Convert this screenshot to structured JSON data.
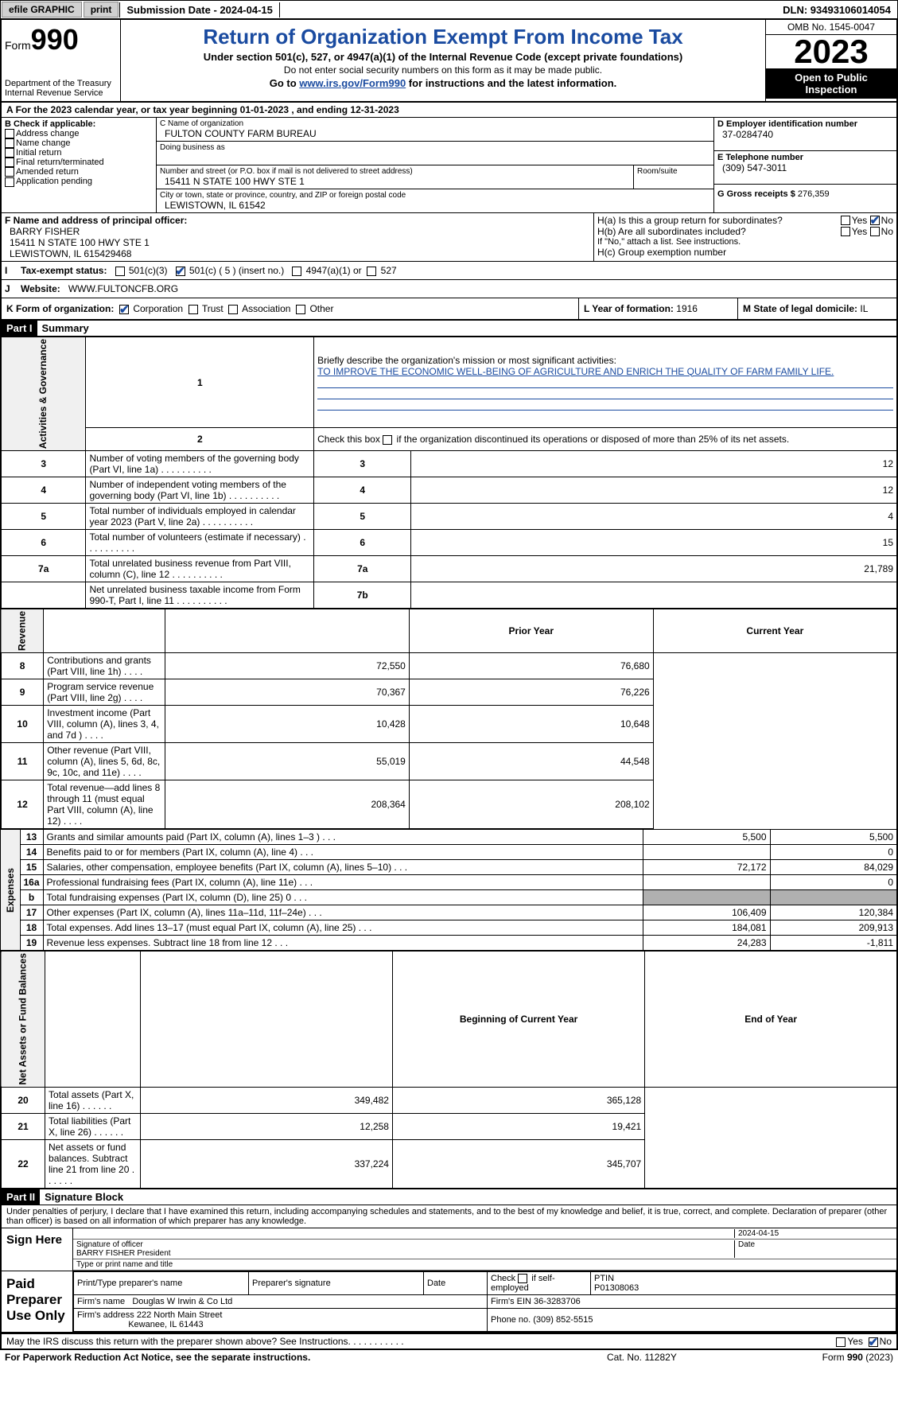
{
  "topbar": {
    "efile": "efile GRAPHIC",
    "print": "print",
    "submission": "Submission Date - 2024-04-15",
    "dln": "DLN: 93493106014054"
  },
  "header": {
    "form_word": "Form",
    "form_number": "990",
    "title": "Return of Organization Exempt From Income Tax",
    "subtitle1": "Under section 501(c), 527, or 4947(a)(1) of the Internal Revenue Code (except private foundations)",
    "subtitle2": "Do not enter social security numbers on this form as it may be made public.",
    "subtitle3_pre": "Go to ",
    "subtitle3_link": "www.irs.gov/Form990",
    "subtitle3_post": " for instructions and the latest information.",
    "dept": "Department of the Treasury",
    "irs": "Internal Revenue Service",
    "omb": "OMB No. 1545-0047",
    "year": "2023",
    "open_public": "Open to Public Inspection"
  },
  "line_a": "For the 2023 calendar year, or tax year beginning 01-01-2023   , and ending 12-31-2023",
  "box_b": {
    "title": "B Check if applicable:",
    "addr": "Address change",
    "name": "Name change",
    "initial": "Initial return",
    "final": "Final return/terminated",
    "amended": "Amended return",
    "app": "Application pending"
  },
  "box_c": {
    "name_lbl": "C Name of organization",
    "name": "FULTON COUNTY FARM BUREAU",
    "dba_lbl": "Doing business as",
    "addr_lbl": "Number and street (or P.O. box if mail is not delivered to street address)",
    "addr": "15411 N STATE 100 HWY STE 1",
    "room_lbl": "Room/suite",
    "city_lbl": "City or town, state or province, country, and ZIP or foreign postal code",
    "city": "LEWISTOWN, IL  61542"
  },
  "box_d": {
    "lbl": "D Employer identification number",
    "val": "37-0284740"
  },
  "box_e": {
    "lbl": "E Telephone number",
    "val": "(309) 547-3011"
  },
  "box_g": {
    "lbl": "G Gross receipts $",
    "val": "276,359"
  },
  "box_f": {
    "lbl": "F  Name and address of principal officer:",
    "name": "BARRY FISHER",
    "addr1": "15411 N STATE 100 HWY STE 1",
    "addr2": "LEWISTOWN, IL  615429468"
  },
  "box_h": {
    "a_lbl": "H(a)  Is this a group return for subordinates?",
    "b_lbl": "H(b)  Are all subordinates included?",
    "note": "If \"No,\" attach a list. See instructions.",
    "c_lbl": "H(c)  Group exemption number",
    "yes": "Yes",
    "no": "No"
  },
  "line_i": {
    "lbl": "Tax-exempt status:",
    "o1": "501(c)(3)",
    "o2": "501(c) ( 5 ) (insert no.)",
    "o3": "4947(a)(1) or",
    "o4": "527"
  },
  "line_j": {
    "lbl": "Website:",
    "val": "WWW.FULTONCFB.ORG"
  },
  "line_k": {
    "lbl": "K Form of organization:",
    "corp": "Corporation",
    "trust": "Trust",
    "assoc": "Association",
    "other": "Other"
  },
  "line_l": {
    "lbl": "L Year of formation:",
    "val": "1916"
  },
  "line_m": {
    "lbl": "M State of legal domicile:",
    "val": "IL"
  },
  "part1": {
    "hdr": "Part I",
    "title": "Summary"
  },
  "summary": {
    "q1_lbl": "Briefly describe the organization's mission or most significant activities:",
    "q1_val": "TO IMPROVE THE ECONOMIC WELL-BEING OF AGRICULTURE AND ENRICH THE QUALITY OF FARM FAMILY LIFE.",
    "q2": "Check this box      if the organization discontinued its operations or disposed of more than 25% of its net assets.",
    "rows_gov": [
      {
        "n": "3",
        "lbl": "Number of voting members of the governing body (Part VI, line 1a)",
        "box": "3",
        "val": "12"
      },
      {
        "n": "4",
        "lbl": "Number of independent voting members of the governing body (Part VI, line 1b)",
        "box": "4",
        "val": "12"
      },
      {
        "n": "5",
        "lbl": "Total number of individuals employed in calendar year 2023 (Part V, line 2a)",
        "box": "5",
        "val": "4"
      },
      {
        "n": "6",
        "lbl": "Total number of volunteers (estimate if necessary)",
        "box": "6",
        "val": "15"
      },
      {
        "n": "7a",
        "lbl": "Total unrelated business revenue from Part VIII, column (C), line 12",
        "box": "7a",
        "val": "21,789"
      },
      {
        "n": "",
        "lbl": "Net unrelated business taxable income from Form 990-T, Part I, line 11",
        "box": "7b",
        "val": ""
      }
    ],
    "col_prior": "Prior Year",
    "col_current": "Current Year",
    "rows_rev": [
      {
        "n": "8",
        "lbl": "Contributions and grants (Part VIII, line 1h)",
        "prior": "72,550",
        "cur": "76,680"
      },
      {
        "n": "9",
        "lbl": "Program service revenue (Part VIII, line 2g)",
        "prior": "70,367",
        "cur": "76,226"
      },
      {
        "n": "10",
        "lbl": "Investment income (Part VIII, column (A), lines 3, 4, and 7d )",
        "prior": "10,428",
        "cur": "10,648"
      },
      {
        "n": "11",
        "lbl": "Other revenue (Part VIII, column (A), lines 5, 6d, 8c, 9c, 10c, and 11e)",
        "prior": "55,019",
        "cur": "44,548"
      },
      {
        "n": "12",
        "lbl": "Total revenue—add lines 8 through 11 (must equal Part VIII, column (A), line 12)",
        "prior": "208,364",
        "cur": "208,102"
      }
    ],
    "rows_exp": [
      {
        "n": "13",
        "lbl": "Grants and similar amounts paid (Part IX, column (A), lines 1–3 )",
        "prior": "5,500",
        "cur": "5,500"
      },
      {
        "n": "14",
        "lbl": "Benefits paid to or for members (Part IX, column (A), line 4)",
        "prior": "",
        "cur": "0"
      },
      {
        "n": "15",
        "lbl": "Salaries, other compensation, employee benefits (Part IX, column (A), lines 5–10)",
        "prior": "72,172",
        "cur": "84,029"
      },
      {
        "n": "16a",
        "lbl": "Professional fundraising fees (Part IX, column (A), line 11e)",
        "prior": "",
        "cur": "0"
      },
      {
        "n": "b",
        "lbl": "Total fundraising expenses (Part IX, column (D), line 25) 0",
        "prior": "GRAY",
        "cur": "GRAY"
      },
      {
        "n": "17",
        "lbl": "Other expenses (Part IX, column (A), lines 11a–11d, 11f–24e)",
        "prior": "106,409",
        "cur": "120,384"
      },
      {
        "n": "18",
        "lbl": "Total expenses. Add lines 13–17 (must equal Part IX, column (A), line 25)",
        "prior": "184,081",
        "cur": "209,913"
      },
      {
        "n": "19",
        "lbl": "Revenue less expenses. Subtract line 18 from line 12",
        "prior": "24,283",
        "cur": "-1,811"
      }
    ],
    "col_begin": "Beginning of Current Year",
    "col_end": "End of Year",
    "rows_net": [
      {
        "n": "20",
        "lbl": "Total assets (Part X, line 16)",
        "prior": "349,482",
        "cur": "365,128"
      },
      {
        "n": "21",
        "lbl": "Total liabilities (Part X, line 26)",
        "prior": "12,258",
        "cur": "19,421"
      },
      {
        "n": "22",
        "lbl": "Net assets or fund balances. Subtract line 21 from line 20",
        "prior": "337,224",
        "cur": "345,707"
      }
    ],
    "vtab_gov": "Activities & Governance",
    "vtab_rev": "Revenue",
    "vtab_exp": "Expenses",
    "vtab_net": "Net Assets or Fund Balances"
  },
  "part2": {
    "hdr": "Part II",
    "title": "Signature Block"
  },
  "sig": {
    "decl": "Under penalties of perjury, I declare that I have examined this return, including accompanying schedules and statements, and to the best of my knowledge and belief, it is true, correct, and complete. Declaration of preparer (other than officer) is based on all information of which preparer has any knowledge.",
    "sign_here": "Sign Here",
    "date": "2024-04-15",
    "sig_officer_lbl": "Signature of officer",
    "officer": "BARRY FISHER  President",
    "type_lbl": "Type or print name and title",
    "date_lbl": "Date",
    "paid": "Paid Preparer Use Only",
    "prep_name_lbl": "Print/Type preparer's name",
    "prep_sig_lbl": "Preparer's signature",
    "check_lbl": "Check        if self-employed",
    "ptin_lbl": "PTIN",
    "ptin": "P01308063",
    "firm_name_lbl": "Firm's name",
    "firm_name": "Douglas W Irwin & Co Ltd",
    "firm_ein_lbl": "Firm's EIN",
    "firm_ein": "36-3283706",
    "firm_addr_lbl": "Firm's address",
    "firm_addr1": "222 North Main Street",
    "firm_addr2": "Kewanee, IL  61443",
    "phone_lbl": "Phone no.",
    "phone": "(309) 852-5515",
    "discuss": "May the IRS discuss this return with the preparer shown above? See Instructions.",
    "yes": "Yes",
    "no": "No"
  },
  "footer": {
    "pra": "For Paperwork Reduction Act Notice, see the separate instructions.",
    "cat": "Cat. No. 11282Y",
    "form": "Form 990 (2023)"
  },
  "colors": {
    "accent_blue": "#1a4ba0",
    "button_gray": "#d0d0d0",
    "cell_gray": "#b0b0b0"
  },
  "dots": "  .   .   .   .   .   .   .   .   .   ."
}
